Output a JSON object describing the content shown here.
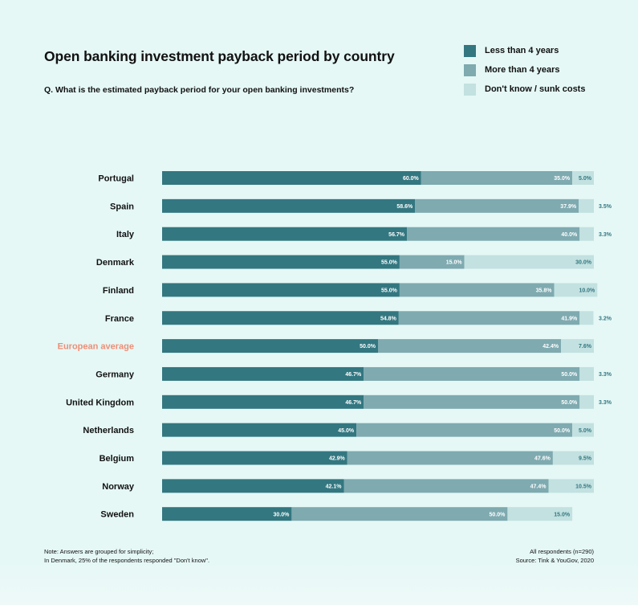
{
  "title": "Open banking investment payback period by country",
  "subtitle": "Q. What is the estimated payback period for your open banking investments?",
  "note_lines": [
    "Note: Answers are grouped for simplicity;",
    "In Denmark, 25% of the respondents responded \"Don't know\"."
  ],
  "source_lines": [
    "All respondents (n=290)",
    "Source: Tink & YouGov, 2020"
  ],
  "colors": {
    "less_than_4": "#337780",
    "more_than_4": "#7eaab0",
    "dont_know": "#c2e1e0",
    "highlight_label": "#ee8e76"
  },
  "chart_data": {
    "type": "bar",
    "orientation": "horizontal",
    "stacked": true,
    "title": "Open banking investment payback period by country",
    "legend_position": "top-right",
    "categories": [
      "Portugal",
      "Spain",
      "Italy",
      "Denmark",
      "Finland",
      "France",
      "European average",
      "Germany",
      "United Kingdom",
      "Netherlands",
      "Belgium",
      "Norway",
      "Sweden"
    ],
    "highlight_category": "European average",
    "series": [
      {
        "name": "Less than 4 years",
        "values": [
          60.0,
          58.6,
          56.7,
          55.0,
          55.0,
          54.8,
          50.0,
          46.7,
          46.7,
          45.0,
          42.9,
          42.1,
          30.0
        ]
      },
      {
        "name": "More than 4 years",
        "values": [
          35.0,
          37.9,
          40.0,
          15.0,
          35.8,
          41.9,
          42.4,
          50.0,
          50.0,
          50.0,
          47.6,
          47.4,
          50.0
        ]
      },
      {
        "name": "Don't know / sunk costs",
        "values": [
          5.0,
          3.5,
          3.3,
          30.0,
          10.0,
          3.2,
          7.6,
          3.3,
          3.3,
          5.0,
          9.5,
          10.5,
          15.0
        ]
      }
    ],
    "labels": [
      [
        "60.0%",
        "35.0%",
        "5.0%"
      ],
      [
        "58.6%",
        "37.9%",
        "3.5%"
      ],
      [
        "56.7%",
        "40.0%",
        "3.3%"
      ],
      [
        "55.0%",
        "15.0%",
        "30.0%"
      ],
      [
        "55.0%",
        "35.8%",
        "10.0%"
      ],
      [
        "54.8%",
        "41.9%",
        "3.2%"
      ],
      [
        "50.0%",
        "42.4%",
        "7.6%"
      ],
      [
        "46.7%",
        "50.0%",
        "3.3%"
      ],
      [
        "46.7%",
        "50.0%",
        "3.3%"
      ],
      [
        "45.0%",
        "50.0%",
        "5.0%"
      ],
      [
        "42.9%",
        "47.6%",
        "9.5%"
      ],
      [
        "42.1%",
        "47.4%",
        "10.5%"
      ],
      [
        "30.0%",
        "50.0%",
        "15.0%"
      ]
    ],
    "xlim": [
      0,
      100
    ]
  }
}
